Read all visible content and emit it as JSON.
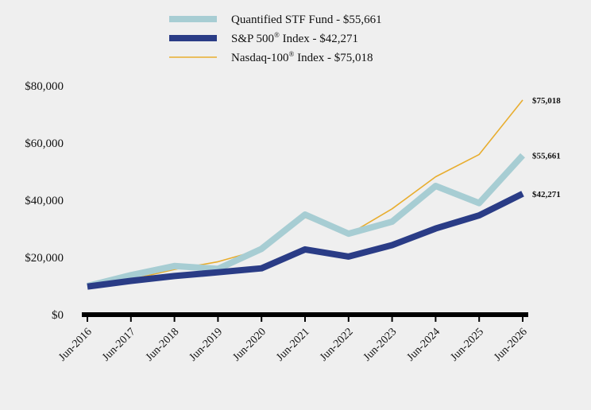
{
  "chart_data": {
    "type": "line",
    "title": "",
    "xlabel": "",
    "ylabel": "",
    "categories": [
      "Jun-2016",
      "Jun-2017",
      "Jun-2018",
      "Jun-2019",
      "Jun-2020",
      "Jun-2021",
      "Jun-2022",
      "Jun-2023",
      "Jun-2024",
      "Jun-2025",
      "Jun-2026"
    ],
    "ylim": [
      0,
      80000
    ],
    "yticks": [
      0,
      20000,
      40000,
      60000,
      80000
    ],
    "ytick_labels": [
      "$0",
      "$20,000",
      "$40,000",
      "$60,000",
      "$80,000"
    ],
    "grid": false,
    "legend_position": "top",
    "series": [
      {
        "name": "Quantified STF Fund - $55,661",
        "legend_main": "Quantified STF Fund - $55,661",
        "legend_sup": "",
        "legend_rest": "",
        "color": "#a7cdd3",
        "line_style": "thick",
        "end_label": "$55,661",
        "values": [
          10000,
          13800,
          17000,
          16000,
          23000,
          35000,
          28300,
          32500,
          45000,
          39000,
          55661
        ]
      },
      {
        "name": "S&P 500® Index - $42,271",
        "legend_main": "S&P 500",
        "legend_sup": "®",
        "legend_rest": " Index - $42,271",
        "color": "#2a3c86",
        "line_style": "thick",
        "end_label": "$42,271",
        "values": [
          9800,
          11800,
          13500,
          14800,
          16200,
          22800,
          20300,
          24300,
          30100,
          34700,
          42271
        ]
      },
      {
        "name": "Nasdaq-100® Index - $75,018",
        "legend_main": "Nasdaq-100",
        "legend_sup": "®",
        "legend_rest": " Index - $75,018",
        "color": "#e8ad2e",
        "line_style": "thin",
        "end_label": "$75,018",
        "values": [
          10000,
          12300,
          15800,
          18500,
          22800,
          34000,
          28000,
          37000,
          48200,
          56000,
          75018
        ]
      }
    ]
  }
}
